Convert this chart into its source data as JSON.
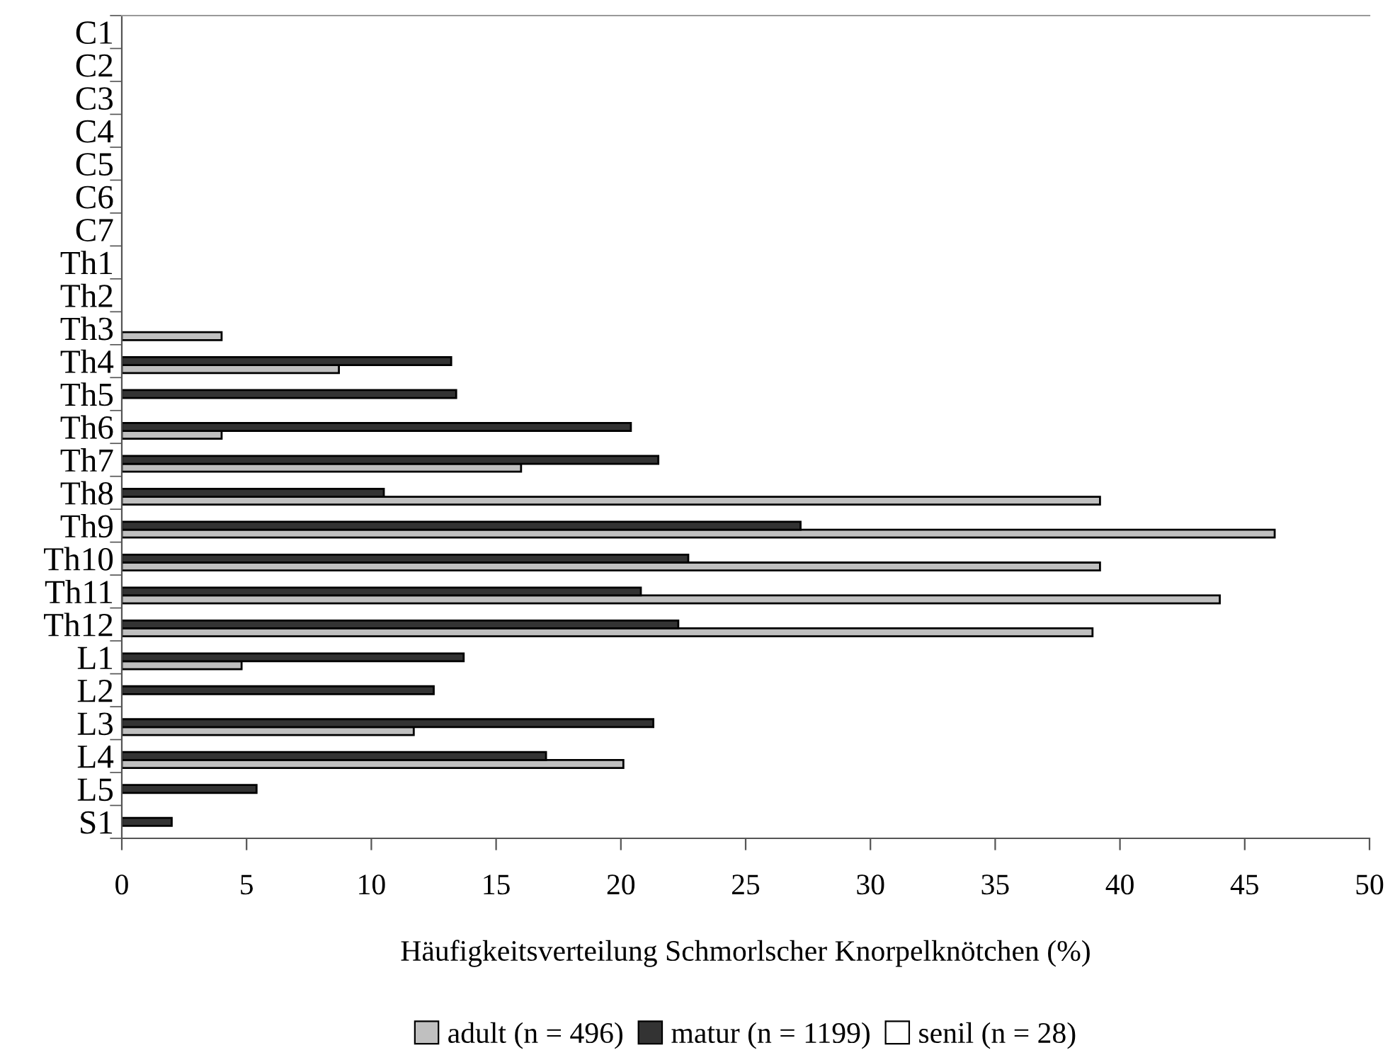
{
  "chart_data": {
    "type": "bar",
    "orientation": "horizontal",
    "xlabel": "Häufigkeitsverteilung Schmorlscher Knorpelknötchen (%)",
    "categories": [
      "C1",
      "C2",
      "C3",
      "C4",
      "C5",
      "C6",
      "C7",
      "Th1",
      "Th2",
      "Th3",
      "Th4",
      "Th5",
      "Th6",
      "Th7",
      "Th8",
      "Th9",
      "Th10",
      "Th11",
      "Th12",
      "L1",
      "L2",
      "L3",
      "L4",
      "L5",
      "S1"
    ],
    "series": [
      {
        "name": "adult (n = 496)",
        "color": "#c0c0c0",
        "values": [
          0,
          0,
          0,
          0,
          0,
          0,
          0,
          0,
          0,
          4.0,
          8.7,
          0,
          4.0,
          16.0,
          39.2,
          46.2,
          39.2,
          44.0,
          38.9,
          4.8,
          0,
          11.7,
          20.1,
          0,
          0
        ]
      },
      {
        "name": "matur (n = 1199)",
        "color": "#333333",
        "values": [
          0,
          0,
          0,
          0,
          0,
          0,
          0,
          0,
          0,
          0,
          13.2,
          13.4,
          20.4,
          21.5,
          10.5,
          27.2,
          22.7,
          20.8,
          22.3,
          13.7,
          12.5,
          21.3,
          17.0,
          5.4,
          2.0
        ]
      },
      {
        "name": "senil (n = 28)",
        "color": "#ffffff",
        "values": [
          0,
          0,
          0,
          0,
          0,
          0,
          0,
          0,
          0,
          0,
          0,
          0,
          0,
          0,
          0,
          0,
          0,
          0,
          0,
          0,
          0,
          0,
          0,
          0,
          0
        ]
      }
    ],
    "xlim": [
      0,
      50
    ],
    "xticks": [
      0,
      5,
      10,
      15,
      20,
      25,
      30,
      35,
      40,
      45,
      50
    ],
    "grid": false,
    "legend": "bottom"
  }
}
